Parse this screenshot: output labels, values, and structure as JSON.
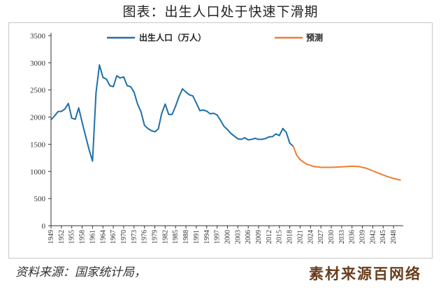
{
  "title": "图表：出生人口处于快速下滑期",
  "source": "资料来源：国家统计局，",
  "watermark": "素材来源百网络",
  "chart_data": {
    "type": "line",
    "ylim": [
      0,
      3500
    ],
    "yticks": [
      0,
      500,
      1000,
      1500,
      2000,
      2500,
      3000,
      3500
    ],
    "xlim": [
      1949,
      2050
    ],
    "xticks": [
      1949,
      1952,
      1955,
      1958,
      1961,
      1964,
      1967,
      1970,
      1973,
      1976,
      1979,
      1982,
      1985,
      1988,
      1991,
      1994,
      1997,
      2000,
      2003,
      2006,
      2009,
      2012,
      2015,
      2018,
      2021,
      2024,
      2027,
      2030,
      2033,
      2036,
      2039,
      2042,
      2045,
      2048
    ],
    "legend_position": "top",
    "series": [
      {
        "name": "出生人口（万人）",
        "color": "#1f6fa8",
        "points": [
          [
            1949,
            1950
          ],
          [
            1950,
            2020
          ],
          [
            1951,
            2100
          ],
          [
            1952,
            2105
          ],
          [
            1953,
            2150
          ],
          [
            1954,
            2250
          ],
          [
            1955,
            1980
          ],
          [
            1956,
            1960
          ],
          [
            1957,
            2170
          ],
          [
            1958,
            1900
          ],
          [
            1959,
            1650
          ],
          [
            1960,
            1400
          ],
          [
            1961,
            1190
          ],
          [
            1962,
            2450
          ],
          [
            1963,
            2960
          ],
          [
            1964,
            2730
          ],
          [
            1965,
            2700
          ],
          [
            1966,
            2580
          ],
          [
            1967,
            2560
          ],
          [
            1968,
            2760
          ],
          [
            1969,
            2720
          ],
          [
            1970,
            2740
          ],
          [
            1971,
            2580
          ],
          [
            1972,
            2560
          ],
          [
            1973,
            2460
          ],
          [
            1974,
            2240
          ],
          [
            1975,
            2100
          ],
          [
            1976,
            1850
          ],
          [
            1977,
            1790
          ],
          [
            1978,
            1750
          ],
          [
            1979,
            1730
          ],
          [
            1980,
            1780
          ],
          [
            1981,
            2070
          ],
          [
            1982,
            2240
          ],
          [
            1983,
            2050
          ],
          [
            1984,
            2050
          ],
          [
            1985,
            2200
          ],
          [
            1986,
            2380
          ],
          [
            1987,
            2520
          ],
          [
            1988,
            2460
          ],
          [
            1989,
            2410
          ],
          [
            1990,
            2390
          ],
          [
            1991,
            2260
          ],
          [
            1992,
            2120
          ],
          [
            1993,
            2130
          ],
          [
            1994,
            2110
          ],
          [
            1995,
            2060
          ],
          [
            1996,
            2070
          ],
          [
            1997,
            2040
          ],
          [
            1998,
            1940
          ],
          [
            1999,
            1830
          ],
          [
            2000,
            1770
          ],
          [
            2001,
            1700
          ],
          [
            2002,
            1650
          ],
          [
            2003,
            1600
          ],
          [
            2004,
            1590
          ],
          [
            2005,
            1620
          ],
          [
            2006,
            1580
          ],
          [
            2007,
            1590
          ],
          [
            2008,
            1610
          ],
          [
            2009,
            1590
          ],
          [
            2010,
            1590
          ],
          [
            2011,
            1605
          ],
          [
            2012,
            1635
          ],
          [
            2013,
            1640
          ],
          [
            2014,
            1690
          ],
          [
            2015,
            1660
          ],
          [
            2016,
            1790
          ],
          [
            2017,
            1720
          ],
          [
            2018,
            1520
          ],
          [
            2019,
            1465
          ]
        ]
      },
      {
        "name": "预测",
        "color": "#ed7d31",
        "points": [
          [
            2019,
            1465
          ],
          [
            2020,
            1300
          ],
          [
            2021,
            1220
          ],
          [
            2022,
            1170
          ],
          [
            2023,
            1130
          ],
          [
            2024,
            1110
          ],
          [
            2025,
            1090
          ],
          [
            2027,
            1075
          ],
          [
            2030,
            1075
          ],
          [
            2033,
            1085
          ],
          [
            2036,
            1095
          ],
          [
            2038,
            1090
          ],
          [
            2040,
            1060
          ],
          [
            2042,
            1010
          ],
          [
            2044,
            960
          ],
          [
            2046,
            910
          ],
          [
            2048,
            870
          ],
          [
            2050,
            840
          ]
        ]
      }
    ]
  }
}
